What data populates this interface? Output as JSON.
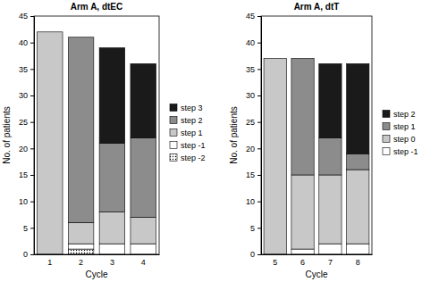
{
  "chart_data": [
    {
      "type": "bar",
      "stacked": true,
      "grid": false,
      "legend": "right",
      "title": "Arm A, dtEC",
      "x_label": "Cycle",
      "y_label": "No. of patients",
      "categories": [
        "1",
        "2",
        "3",
        "4"
      ],
      "ylim": [
        0,
        45
      ],
      "yticks": [
        0,
        5,
        10,
        15,
        20,
        25,
        30,
        35,
        40,
        45
      ],
      "series": [
        {
          "name": "step -2",
          "color": "#000000",
          "marker": "dotted",
          "values": [
            0,
            1,
            0,
            0
          ]
        },
        {
          "name": "step -1",
          "color": "#ffffff",
          "values": [
            0,
            1,
            2,
            2
          ]
        },
        {
          "name": "step 1",
          "color": "#c8c8c8",
          "values": [
            42,
            4,
            6,
            5
          ]
        },
        {
          "name": "step 2",
          "color": "#8c8c8c",
          "values": [
            0,
            35,
            13,
            15
          ]
        },
        {
          "name": "step 3",
          "color": "#1a1a1a",
          "values": [
            0,
            0,
            18,
            14
          ]
        }
      ]
    },
    {
      "type": "bar",
      "stacked": true,
      "grid": false,
      "legend": "right",
      "title": "Arm A, dtT",
      "x_label": "Cycle",
      "y_label": "No. of patients",
      "categories": [
        "5",
        "6",
        "7",
        "8"
      ],
      "ylim": [
        0,
        45
      ],
      "yticks": [
        0,
        5,
        10,
        15,
        20,
        25,
        30,
        35,
        40,
        45
      ],
      "series": [
        {
          "name": "step -1",
          "color": "#ffffff",
          "values": [
            0,
            1,
            2,
            2
          ]
        },
        {
          "name": "step 0",
          "color": "#c8c8c8",
          "values": [
            37,
            14,
            13,
            14
          ]
        },
        {
          "name": "step 1",
          "color": "#8c8c8c",
          "values": [
            0,
            22,
            7,
            3
          ]
        },
        {
          "name": "step 2",
          "color": "#1a1a1a",
          "values": [
            0,
            0,
            14,
            17
          ]
        }
      ]
    }
  ]
}
